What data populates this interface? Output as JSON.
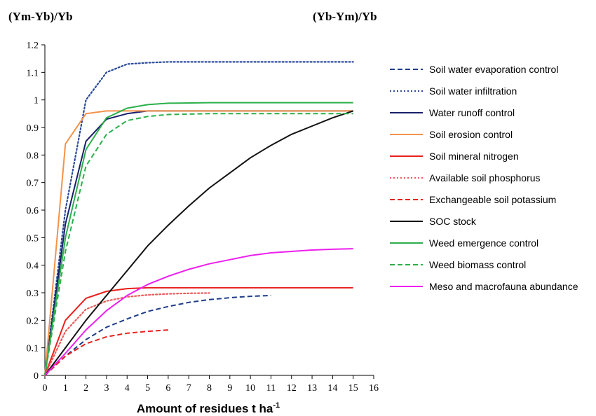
{
  "headers": {
    "left": "(Ym-Yb)/Yb",
    "right": "(Yb-Ym)/Yb"
  },
  "chart_data": {
    "type": "line",
    "title": "",
    "xlabel": "Amount of residues t ha",
    "xlabel_sup": "-1",
    "ylabel": "",
    "xlim": [
      0,
      16
    ],
    "ylim": [
      0,
      1.2
    ],
    "xticks": [
      "0",
      "1",
      "2",
      "3",
      "4",
      "5",
      "6",
      "7",
      "8",
      "9",
      "10",
      "11",
      "12",
      "13",
      "14",
      "15",
      "16"
    ],
    "yticks": [
      "0",
      "0.1",
      "0.2",
      "0.3",
      "0.4",
      "0.5",
      "0.6",
      "0.7",
      "0.8",
      "0.9",
      "1",
      "1.1",
      "1.2"
    ],
    "grid": false,
    "legend_position": "right",
    "series": [
      {
        "name": "Soil water evaporation control",
        "color": "#1f3c88",
        "dash": "dashed",
        "x": [
          0,
          1,
          2,
          3,
          4,
          5,
          6,
          7,
          8,
          9,
          10,
          11
        ],
        "y": [
          0,
          0.07,
          0.13,
          0.175,
          0.205,
          0.232,
          0.25,
          0.265,
          0.275,
          0.282,
          0.287,
          0.29
        ]
      },
      {
        "name": "Soil water infiltration",
        "color": "#2a4a9a",
        "dash": "dotted",
        "x": [
          0,
          1,
          2,
          3,
          4,
          5,
          6,
          8,
          10,
          12,
          15
        ],
        "y": [
          0,
          0.6,
          1.0,
          1.1,
          1.13,
          1.135,
          1.138,
          1.138,
          1.138,
          1.138,
          1.138
        ]
      },
      {
        "name": "Water runoff control",
        "color": "#1a1f6b",
        "dash": "solid",
        "x": [
          0,
          1,
          2,
          3,
          4,
          5,
          6,
          15
        ],
        "y": [
          0,
          0.55,
          0.85,
          0.93,
          0.95,
          0.96,
          0.96,
          0.96
        ]
      },
      {
        "name": "Soil erosion control",
        "color": "#f4924a",
        "dash": "solid",
        "x": [
          0,
          1,
          2,
          3,
          4,
          15
        ],
        "y": [
          0,
          0.84,
          0.95,
          0.96,
          0.96,
          0.96
        ]
      },
      {
        "name": "Soil mineral nitrogen",
        "color": "#e8211d",
        "dash": "solid",
        "x": [
          0,
          1,
          2,
          3,
          4,
          5,
          15
        ],
        "y": [
          0,
          0.2,
          0.28,
          0.305,
          0.315,
          0.318,
          0.318
        ]
      },
      {
        "name": "Available soil phosphorus",
        "color": "#ec5a5a",
        "dash": "dotted",
        "x": [
          0,
          1,
          2,
          3,
          4,
          5,
          6,
          7,
          8
        ],
        "y": [
          0,
          0.16,
          0.24,
          0.27,
          0.285,
          0.292,
          0.296,
          0.298,
          0.299
        ]
      },
      {
        "name": "Exchangeable soil potassium",
        "color": "#e8211d",
        "dash": "dashed",
        "x": [
          0,
          1,
          2,
          3,
          4,
          5,
          6
        ],
        "y": [
          0,
          0.07,
          0.115,
          0.14,
          0.153,
          0.16,
          0.165
        ]
      },
      {
        "name": "SOC stock",
        "color": "#111111",
        "dash": "solid",
        "x": [
          0,
          1,
          2,
          3,
          4,
          5,
          6,
          7,
          8,
          9,
          10,
          11,
          12,
          13,
          14,
          15
        ],
        "y": [
          0,
          0.1,
          0.2,
          0.29,
          0.38,
          0.47,
          0.545,
          0.615,
          0.68,
          0.735,
          0.79,
          0.835,
          0.875,
          0.905,
          0.935,
          0.96
        ]
      },
      {
        "name": "Weed emergence control",
        "color": "#2bb04a",
        "dash": "solid",
        "x": [
          0,
          1,
          2,
          3,
          4,
          5,
          6,
          8,
          10,
          15
        ],
        "y": [
          0,
          0.5,
          0.82,
          0.935,
          0.97,
          0.983,
          0.988,
          0.99,
          0.99,
          0.99
        ]
      },
      {
        "name": "Weed biomass control",
        "color": "#2bb04a",
        "dash": "dashed",
        "x": [
          0,
          1,
          2,
          3,
          4,
          5,
          6,
          8,
          10,
          15
        ],
        "y": [
          0,
          0.45,
          0.76,
          0.875,
          0.925,
          0.94,
          0.947,
          0.95,
          0.95,
          0.95
        ]
      },
      {
        "name": "Meso and macrofauna abundance",
        "color": "#ee1fee",
        "dash": "solid",
        "x": [
          0,
          1,
          2,
          3,
          4,
          5,
          6,
          7,
          8,
          9,
          10,
          11,
          12,
          13,
          14,
          15
        ],
        "y": [
          0,
          0.08,
          0.165,
          0.235,
          0.29,
          0.33,
          0.36,
          0.385,
          0.405,
          0.42,
          0.435,
          0.445,
          0.45,
          0.455,
          0.458,
          0.46
        ]
      }
    ]
  }
}
